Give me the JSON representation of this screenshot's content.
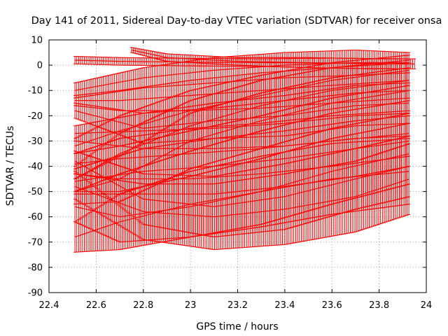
{
  "chart_data": {
    "type": "line",
    "title": "Day 141 of 2011, Sidereal Day-to-day VTEC variation (SDTVAR) for receiver onsa",
    "xlabel": "GPS time / hours",
    "ylabel": "SDTVAR / TECUs",
    "xlim": [
      22.4,
      24
    ],
    "ylim": [
      -90,
      10
    ],
    "x_ticks": [
      22.4,
      22.6,
      22.8,
      23,
      23.2,
      23.4,
      23.6,
      23.8,
      24
    ],
    "x_tick_labels": [
      "22.4",
      "22.6",
      "22.8",
      "23",
      "23.2",
      "23.4",
      "23.6",
      "23.8",
      "24"
    ],
    "y_ticks": [
      10,
      0,
      -10,
      -20,
      -30,
      -40,
      -50,
      -60,
      -70,
      -80,
      -90
    ],
    "y_tick_labels": [
      "10",
      "0",
      "-10",
      "-20",
      "-30",
      "-40",
      "-50",
      "-60",
      "-70",
      "-80",
      "-90"
    ],
    "grid": true,
    "line_color": "#ff0000",
    "series": [
      {
        "name": "s1",
        "x": [
          22.51,
          22.7,
          23.0,
          23.3,
          23.6,
          23.93
        ],
        "y": [
          2,
          1.5,
          1.2,
          1.0,
          0.8,
          0.5
        ],
        "err": [
          1.5,
          1.5,
          1.5,
          1.5,
          2,
          2
        ]
      },
      {
        "name": "s2",
        "x": [
          22.75,
          22.9,
          23.2,
          23.5,
          23.8,
          23.95
        ],
        "y": [
          6,
          3,
          1.5,
          1.0,
          0.5,
          0.5
        ],
        "err": [
          1,
          1.5,
          1.5,
          2,
          2,
          2
        ]
      },
      {
        "name": "s3",
        "x": [
          22.51,
          22.8,
          23.1,
          23.4,
          23.7,
          23.93
        ],
        "y": [
          -10,
          -5,
          -2,
          0,
          1,
          1
        ],
        "err": [
          3,
          4,
          5,
          5,
          5,
          4
        ]
      },
      {
        "name": "s4",
        "x": [
          22.51,
          22.7,
          23.0,
          23.3,
          23.6,
          23.93
        ],
        "y": [
          -14,
          -14,
          -12,
          -10,
          -8,
          -6
        ],
        "err": [
          2,
          4,
          6,
          7,
          7,
          7
        ]
      },
      {
        "name": "s5",
        "x": [
          22.51,
          22.8,
          23.1,
          23.4,
          23.7,
          23.93
        ],
        "y": [
          -18,
          -25,
          -22,
          -20,
          -16,
          -15
        ],
        "err": [
          3,
          6,
          7,
          8,
          8,
          8
        ]
      },
      {
        "name": "s6",
        "x": [
          22.51,
          22.8,
          23.1,
          23.4,
          23.7,
          23.93
        ],
        "y": [
          -27,
          -26,
          -25,
          -23,
          -20,
          -19
        ],
        "err": [
          3,
          7,
          8,
          9,
          9,
          9
        ]
      },
      {
        "name": "s7",
        "x": [
          22.51,
          22.7,
          23.0,
          23.3,
          23.6,
          23.93
        ],
        "y": [
          -32,
          -26,
          -18,
          -12,
          -6,
          -2
        ],
        "err": [
          3,
          6,
          8,
          8,
          7,
          6
        ]
      },
      {
        "name": "s8",
        "x": [
          22.51,
          22.7,
          23.0,
          23.3,
          23.6,
          23.93
        ],
        "y": [
          -39,
          -37,
          -35,
          -33,
          -30,
          -27
        ],
        "err": [
          4,
          8,
          10,
          10,
          10,
          9
        ]
      },
      {
        "name": "s9",
        "x": [
          22.51,
          22.7,
          23.0,
          23.3,
          23.6,
          23.93
        ],
        "y": [
          -45,
          -35,
          -24,
          -16,
          -10,
          -6
        ],
        "err": [
          5,
          8,
          10,
          10,
          9,
          8
        ]
      },
      {
        "name": "s10",
        "x": [
          22.51,
          22.8,
          23.1,
          23.4,
          23.7,
          23.93
        ],
        "y": [
          -46,
          -42,
          -40,
          -37,
          -33,
          -30
        ],
        "err": [
          5,
          9,
          11,
          11,
          11,
          10
        ]
      },
      {
        "name": "s11",
        "x": [
          22.51,
          22.7,
          23.0,
          23.3,
          23.6,
          23.93
        ],
        "y": [
          -50,
          -45,
          -30,
          -22,
          -15,
          -10
        ],
        "err": [
          5,
          9,
          11,
          11,
          10,
          9
        ]
      },
      {
        "name": "s12",
        "x": [
          22.51,
          22.8,
          23.1,
          23.4,
          23.7,
          23.93
        ],
        "y": [
          -38,
          -53,
          -56,
          -52,
          -45,
          -40
        ],
        "err": [
          4,
          10,
          12,
          13,
          12,
          12
        ]
      },
      {
        "name": "s13",
        "x": [
          22.51,
          22.7,
          23.0,
          23.3,
          23.6,
          23.93
        ],
        "y": [
          -56,
          -60,
          -56,
          -50,
          -42,
          -35
        ],
        "err": [
          6,
          10,
          12,
          13,
          13,
          12
        ]
      },
      {
        "name": "s14",
        "x": [
          22.51,
          22.7,
          23.0,
          23.3,
          23.6,
          23.93
        ],
        "y": [
          -68,
          -62,
          -55,
          -50,
          -45,
          -42
        ],
        "err": [
          6,
          11,
          13,
          14,
          14,
          13
        ]
      },
      {
        "name": "s15",
        "x": [
          22.51,
          22.8,
          23.1,
          23.4,
          23.7,
          23.93
        ],
        "y": [
          -48,
          -58,
          -60,
          -57,
          -52,
          -45
        ],
        "err": [
          5,
          11,
          13,
          14,
          14,
          14
        ]
      }
    ]
  }
}
